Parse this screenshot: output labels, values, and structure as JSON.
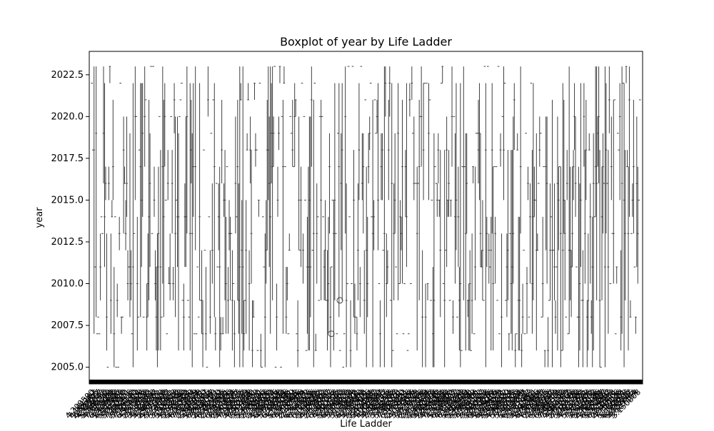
{
  "chart_data": {
    "type": "box",
    "title": "Boxplot of year by Life Ladder",
    "xlabel": "Life Ladder",
    "ylabel": "year",
    "ylim": [
      2004.0,
      2023.9
    ],
    "yticks": [
      2005.0,
      2007.5,
      2010.0,
      2012.5,
      2015.0,
      2017.5,
      2020.0,
      2022.5
    ],
    "ytick_labels": [
      "2005.0",
      "2007.5",
      "2010.0",
      "2012.5",
      "2015.0",
      "2017.5",
      "2020.0",
      "2022.5"
    ],
    "category_count_estimate": 1800,
    "category_label_rotation_deg": 45,
    "year_range": [
      2005,
      2023
    ],
    "box_color": "#3f3f3f",
    "outliers": [
      {
        "year": 2007
      },
      {
        "year": 2009
      }
    ],
    "grid": false
  }
}
